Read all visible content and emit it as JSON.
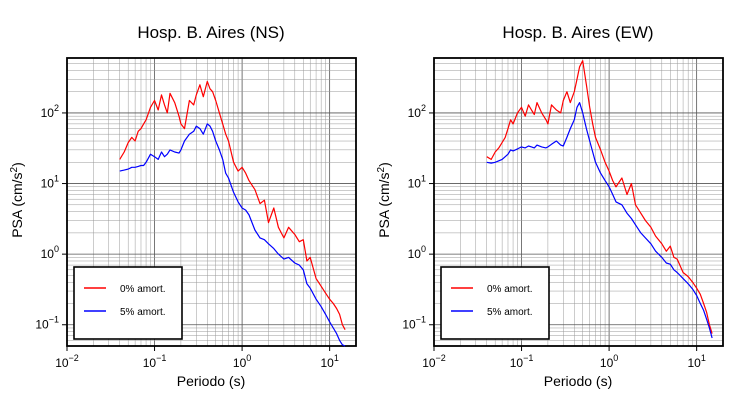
{
  "colors": {
    "zero_damping": "#ff0000",
    "five_damping": "#0000ff"
  },
  "chart_data": [
    {
      "type": "line",
      "title": "Hosp. B. Aires (NS)",
      "xlabel": "Periodo (s)",
      "ylabel": "PSA (cm/s",
      "ylabel_sup": "2",
      "ylabel_close": ")",
      "xscale": "log",
      "yscale": "log",
      "xlim": [
        0.01,
        20
      ],
      "ylim": [
        0.05,
        600
      ],
      "grid": true,
      "legend_position": "bottom-left",
      "x_ticks": [
        {
          "base": "10",
          "exp": "−2"
        },
        {
          "base": "10",
          "exp": "−1"
        },
        {
          "base": "10",
          "exp": "0"
        },
        {
          "base": "10",
          "exp": "1"
        }
      ],
      "y_ticks": [
        {
          "base": "10",
          "exp": "−1"
        },
        {
          "base": "10",
          "exp": "0"
        },
        {
          "base": "10",
          "exp": "1"
        },
        {
          "base": "10",
          "exp": "2"
        }
      ],
      "series": [
        {
          "name": "0% amort.",
          "color": "#ff0000",
          "x": [
            0.04,
            0.045,
            0.05,
            0.055,
            0.06,
            0.065,
            0.07,
            0.075,
            0.08,
            0.09,
            0.1,
            0.11,
            0.12,
            0.13,
            0.14,
            0.15,
            0.17,
            0.19,
            0.2,
            0.22,
            0.25,
            0.28,
            0.3,
            0.33,
            0.36,
            0.4,
            0.43,
            0.46,
            0.5,
            0.55,
            0.6,
            0.65,
            0.7,
            0.8,
            0.9,
            1.0,
            1.1,
            1.2,
            1.4,
            1.6,
            1.8,
            2.0,
            2.3,
            2.6,
            3.0,
            3.4,
            4.0,
            4.5,
            5.0,
            5.5,
            6.0,
            7.0,
            8.0,
            9.0,
            10.0,
            11.0,
            12.0,
            13.0,
            14.0,
            15.0
          ],
          "y": [
            22,
            28,
            38,
            45,
            40,
            55,
            60,
            70,
            80,
            120,
            150,
            110,
            180,
            130,
            100,
            190,
            140,
            90,
            70,
            60,
            150,
            130,
            180,
            250,
            170,
            280,
            220,
            200,
            150,
            100,
            70,
            50,
            40,
            20,
            15,
            17,
            14,
            11,
            8.2,
            5.2,
            5.8,
            2.8,
            4.5,
            2.4,
            1.7,
            2.4,
            1.9,
            1.5,
            1.6,
            0.8,
            0.9,
            0.45,
            0.35,
            0.28,
            0.23,
            0.2,
            0.17,
            0.14,
            0.1,
            0.085
          ]
        },
        {
          "name": "5% amort.",
          "color": "#0000ff",
          "x": [
            0.04,
            0.045,
            0.05,
            0.055,
            0.06,
            0.065,
            0.07,
            0.075,
            0.08,
            0.09,
            0.1,
            0.11,
            0.12,
            0.13,
            0.14,
            0.15,
            0.17,
            0.19,
            0.2,
            0.22,
            0.25,
            0.28,
            0.3,
            0.33,
            0.36,
            0.4,
            0.43,
            0.46,
            0.5,
            0.55,
            0.6,
            0.65,
            0.7,
            0.8,
            0.9,
            1.0,
            1.1,
            1.2,
            1.4,
            1.6,
            1.8,
            2.0,
            2.3,
            2.6,
            3.0,
            3.4,
            4.0,
            4.5,
            5.0,
            5.5,
            6.0,
            7.0,
            8.0,
            9.0,
            10.0,
            11.0,
            12.0,
            13.0,
            14.0,
            15.0
          ],
          "y": [
            15,
            15.5,
            16,
            17,
            17,
            17.5,
            18,
            18,
            20,
            26,
            24,
            22,
            28,
            24,
            26,
            30,
            28,
            27,
            30,
            40,
            50,
            55,
            65,
            60,
            50,
            70,
            65,
            55,
            40,
            30,
            22,
            14,
            12,
            7.5,
            5.5,
            4.5,
            4.2,
            3.6,
            2.2,
            1.7,
            1.6,
            1.4,
            1.2,
            1.0,
            0.85,
            0.9,
            0.75,
            0.7,
            0.6,
            0.38,
            0.33,
            0.23,
            0.18,
            0.14,
            0.11,
            0.09,
            0.075,
            0.06,
            0.052,
            0.05
          ]
        }
      ]
    },
    {
      "type": "line",
      "title": "Hosp. B. Aires (EW)",
      "xlabel": "Periodo (s)",
      "ylabel": "PSA (cm/s",
      "ylabel_sup": "2",
      "ylabel_close": ")",
      "xscale": "log",
      "yscale": "log",
      "xlim": [
        0.01,
        20
      ],
      "ylim": [
        0.05,
        600
      ],
      "grid": true,
      "legend_position": "bottom-left",
      "x_ticks": [
        {
          "base": "10",
          "exp": "−2"
        },
        {
          "base": "10",
          "exp": "−1"
        },
        {
          "base": "10",
          "exp": "0"
        },
        {
          "base": "10",
          "exp": "1"
        }
      ],
      "y_ticks": [
        {
          "base": "10",
          "exp": "−1"
        },
        {
          "base": "10",
          "exp": "0"
        },
        {
          "base": "10",
          "exp": "1"
        },
        {
          "base": "10",
          "exp": "2"
        }
      ],
      "series": [
        {
          "name": "0% amort.",
          "color": "#ff0000",
          "x": [
            0.04,
            0.045,
            0.05,
            0.055,
            0.06,
            0.065,
            0.07,
            0.075,
            0.08,
            0.09,
            0.1,
            0.11,
            0.12,
            0.13,
            0.14,
            0.15,
            0.17,
            0.19,
            0.2,
            0.22,
            0.25,
            0.28,
            0.3,
            0.33,
            0.36,
            0.4,
            0.43,
            0.46,
            0.5,
            0.55,
            0.6,
            0.65,
            0.7,
            0.8,
            0.9,
            1.0,
            1.1,
            1.2,
            1.4,
            1.6,
            1.8,
            2.0,
            2.3,
            2.6,
            3.0,
            3.4,
            4.0,
            4.5,
            5.0,
            5.5,
            6.0,
            7.0,
            8.0,
            9.0,
            10.0,
            11.0,
            12.0,
            13.0,
            14.0,
            15.0
          ],
          "y": [
            24,
            22,
            28,
            32,
            38,
            45,
            60,
            80,
            70,
            100,
            120,
            90,
            130,
            110,
            95,
            140,
            100,
            80,
            70,
            130,
            110,
            100,
            150,
            200,
            140,
            200,
            300,
            450,
            550,
            250,
            120,
            70,
            45,
            30,
            20,
            15,
            11,
            9,
            12,
            7,
            10,
            5,
            3.8,
            3.0,
            2.4,
            1.8,
            1.4,
            1.1,
            1.3,
            0.9,
            0.85,
            0.55,
            0.48,
            0.4,
            0.33,
            0.27,
            0.2,
            0.15,
            0.1,
            0.075
          ]
        },
        {
          "name": "5% amort.",
          "color": "#0000ff",
          "x": [
            0.04,
            0.045,
            0.05,
            0.055,
            0.06,
            0.065,
            0.07,
            0.075,
            0.08,
            0.09,
            0.1,
            0.11,
            0.12,
            0.13,
            0.14,
            0.15,
            0.17,
            0.19,
            0.2,
            0.22,
            0.25,
            0.28,
            0.3,
            0.33,
            0.36,
            0.4,
            0.43,
            0.46,
            0.5,
            0.55,
            0.6,
            0.65,
            0.7,
            0.8,
            0.9,
            1.0,
            1.1,
            1.2,
            1.4,
            1.6,
            1.8,
            2.0,
            2.3,
            2.6,
            3.0,
            3.4,
            4.0,
            4.5,
            5.0,
            5.5,
            6.0,
            7.0,
            8.0,
            9.0,
            10.0,
            11.0,
            12.0,
            13.0,
            14.0,
            15.0
          ],
          "y": [
            20,
            19.5,
            20,
            21,
            22,
            24,
            26,
            30,
            29,
            31,
            33,
            32,
            34,
            33,
            32,
            35,
            33,
            32,
            33,
            36,
            40,
            35,
            34,
            45,
            60,
            80,
            120,
            140,
            100,
            60,
            40,
            28,
            20,
            14,
            11,
            9,
            7,
            5.5,
            5,
            3.8,
            3.2,
            2.6,
            2,
            1.7,
            1.4,
            1.1,
            0.9,
            0.75,
            0.72,
            0.6,
            0.55,
            0.45,
            0.38,
            0.32,
            0.26,
            0.2,
            0.16,
            0.12,
            0.09,
            0.065
          ]
        }
      ]
    }
  ]
}
